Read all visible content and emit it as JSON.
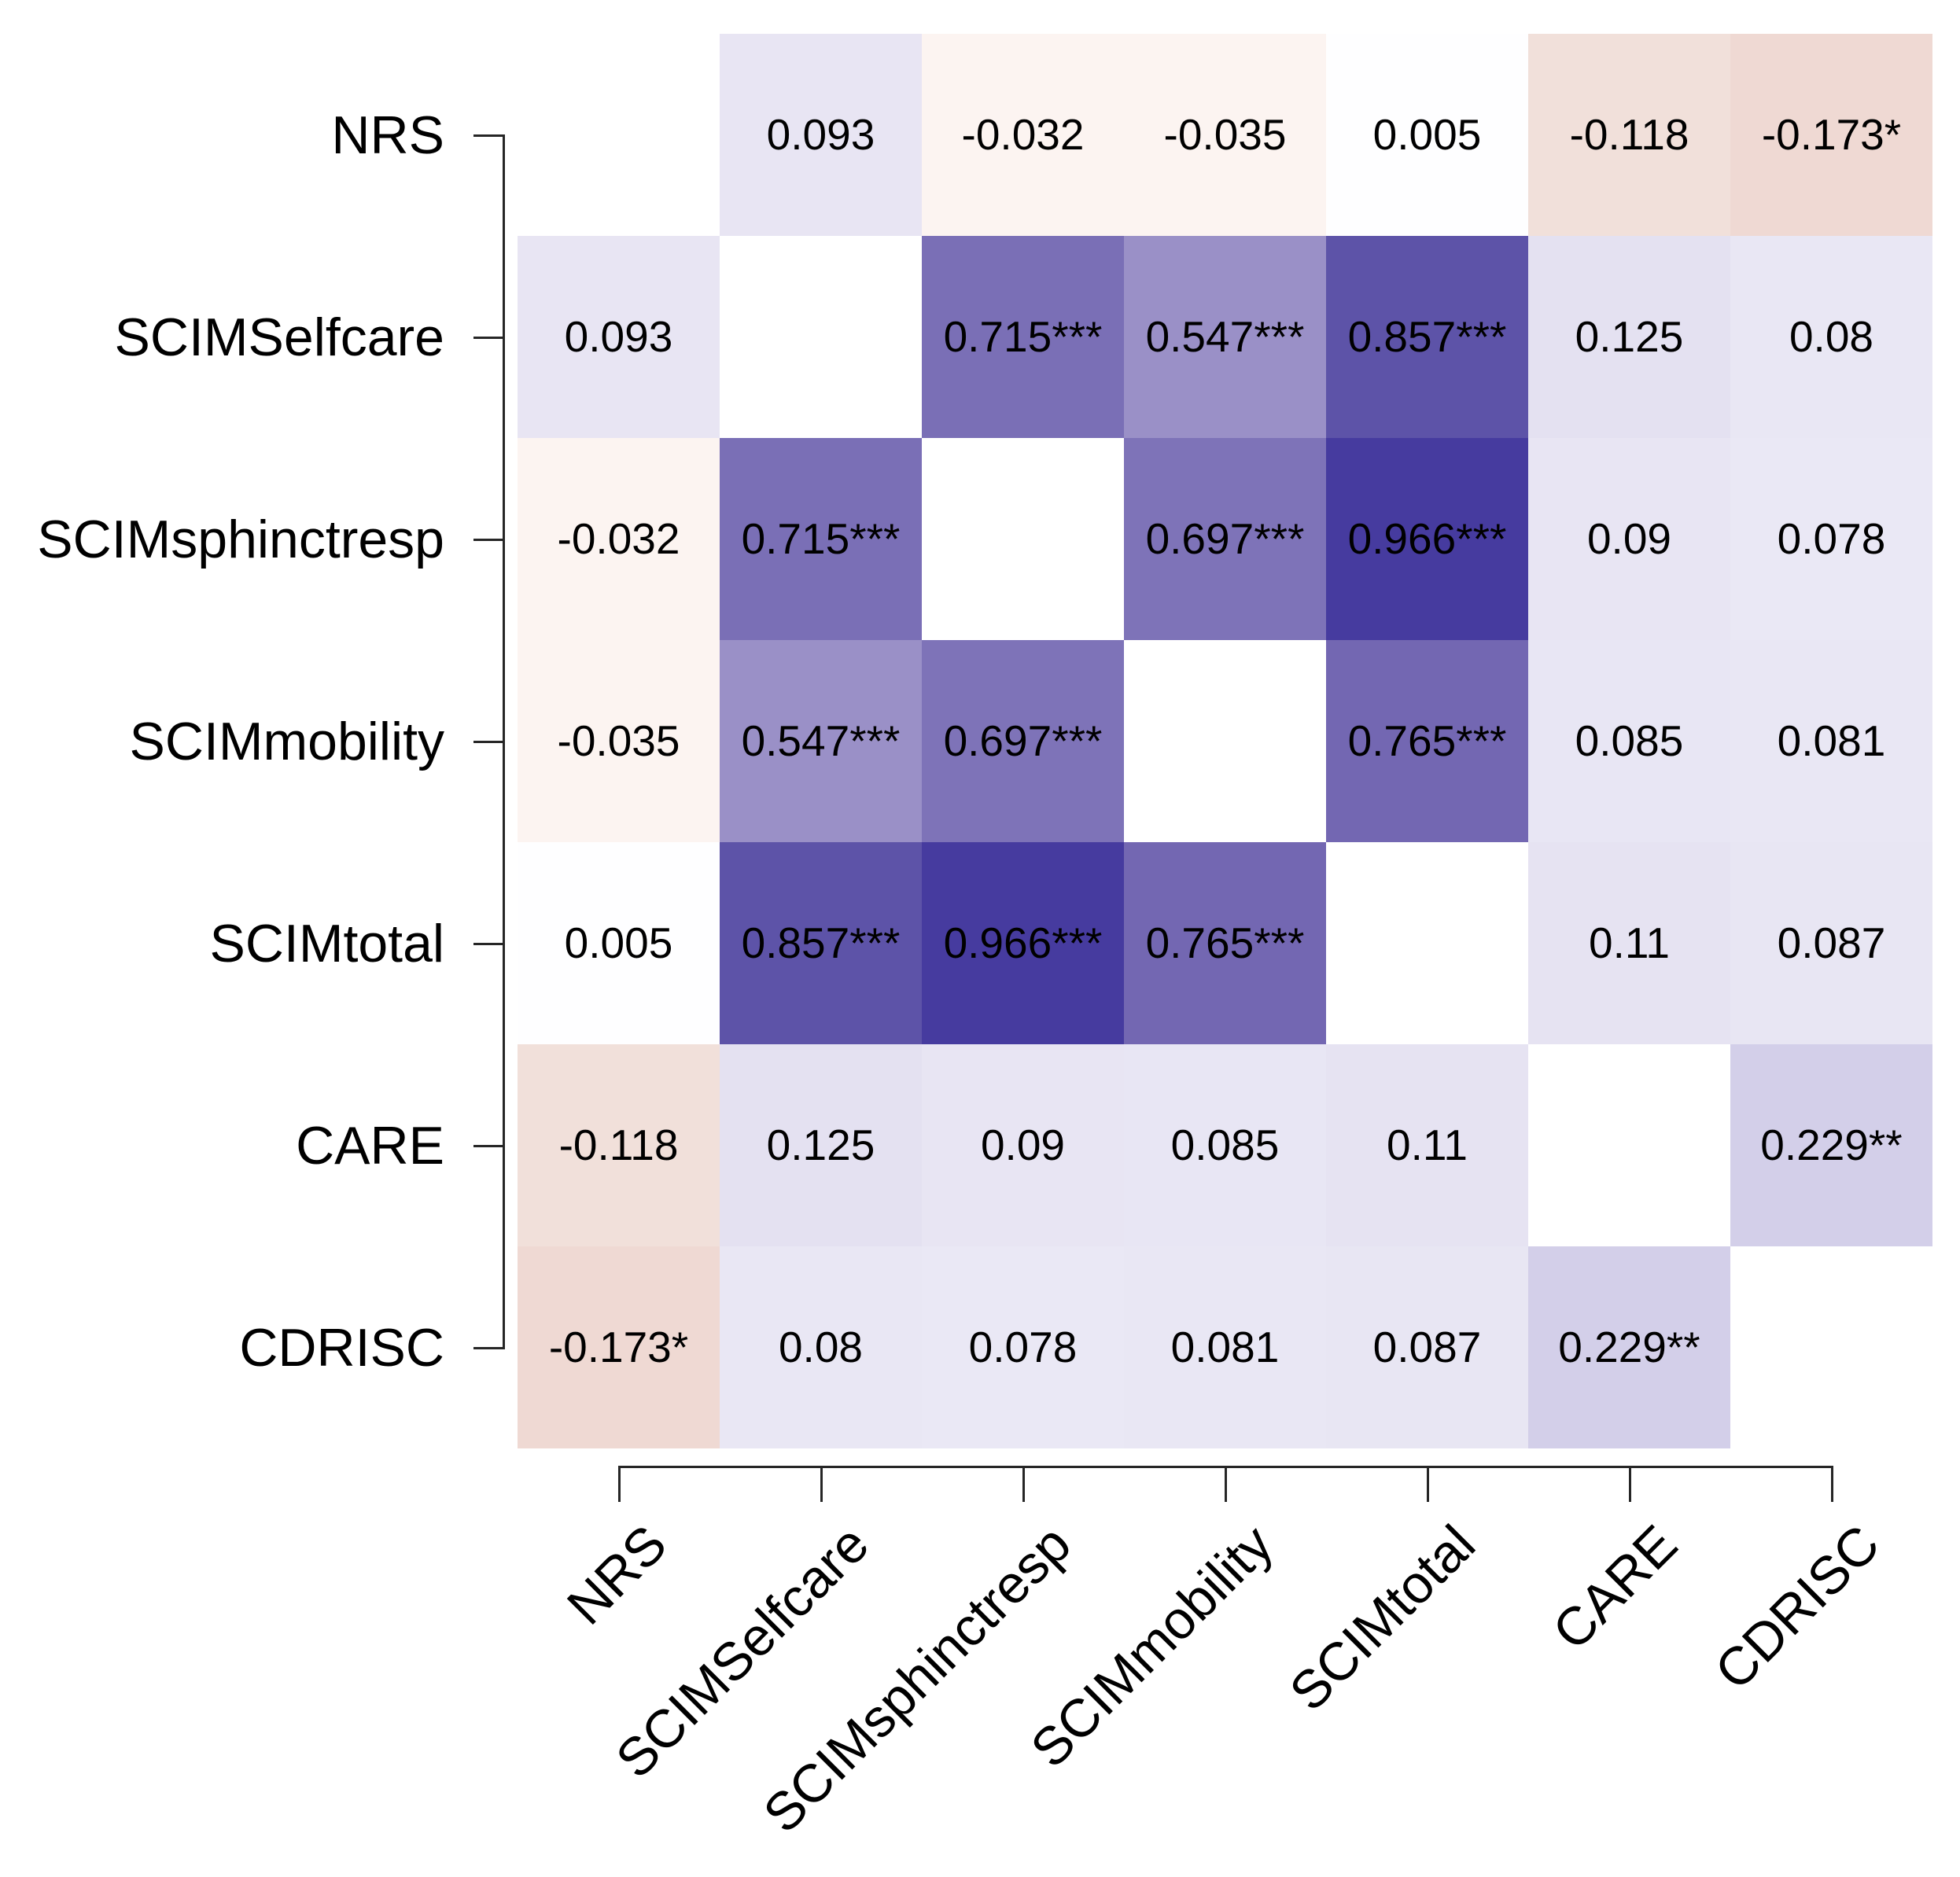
{
  "chart_data": {
    "type": "heatmap",
    "subtype": "correlation-matrix",
    "title": "",
    "variables": [
      "NRS",
      "SCIMSelfcare",
      "SCIMsphinctresp",
      "SCIMmobility",
      "SCIMtotal",
      "CARE",
      "CDRISC"
    ],
    "values": [
      [
        null,
        0.093,
        -0.032,
        -0.035,
        0.005,
        -0.118,
        -0.173
      ],
      [
        0.093,
        null,
        0.715,
        0.547,
        0.857,
        0.125,
        0.08
      ],
      [
        -0.032,
        0.715,
        null,
        0.697,
        0.966,
        0.09,
        0.078
      ],
      [
        -0.035,
        0.547,
        0.697,
        null,
        0.765,
        0.085,
        0.081
      ],
      [
        0.005,
        0.857,
        0.966,
        0.765,
        null,
        0.11,
        0.087
      ],
      [
        -0.118,
        0.125,
        0.09,
        0.085,
        0.11,
        null,
        0.229
      ],
      [
        -0.173,
        0.08,
        0.078,
        0.081,
        0.087,
        0.229,
        null
      ]
    ],
    "labels": [
      [
        "",
        "0.093",
        "-0.032",
        "-0.035",
        "0.005",
        "-0.118",
        "-0.173*"
      ],
      [
        "0.093",
        "",
        "0.715***",
        "0.547***",
        "0.857***",
        "0.125",
        "0.08"
      ],
      [
        "-0.032",
        "0.715***",
        "",
        "0.697***",
        "0.966***",
        "0.09",
        "0.078"
      ],
      [
        "-0.035",
        "0.547***",
        "0.697***",
        "",
        "0.765***",
        "0.085",
        "0.081"
      ],
      [
        "0.005",
        "0.857***",
        "0.966***",
        "0.765***",
        "",
        "0.11",
        "0.087"
      ],
      [
        "-0.118",
        "0.125",
        "0.09",
        "0.085",
        "0.11",
        "",
        "0.229**"
      ],
      [
        "-0.173*",
        "0.08",
        "0.078",
        "0.081",
        "0.087",
        "0.229**",
        ""
      ]
    ],
    "cell_colors": [
      [
        "#ffffff",
        "#e8e5f3",
        "#fcf4f1",
        "#fcf4f1",
        "#fefeff",
        "#f1e0da",
        "#efd9d3"
      ],
      [
        "#e8e5f3",
        "#ffffff",
        "#7a6fb6",
        "#9a90c7",
        "#5d53a8",
        "#e4e1f1",
        "#e9e7f4"
      ],
      [
        "#fcf4f1",
        "#7a6fb6",
        "#ffffff",
        "#7e73b8",
        "#463b9f",
        "#e8e5f3",
        "#eae8f5"
      ],
      [
        "#fcf4f1",
        "#9a90c7",
        "#7e73b8",
        "#ffffff",
        "#7367b2",
        "#e8e6f4",
        "#e9e7f4"
      ],
      [
        "#fefeff",
        "#5d53a8",
        "#463b9f",
        "#7367b2",
        "#ffffff",
        "#e6e3f2",
        "#e8e6f3"
      ],
      [
        "#f1e0da",
        "#e4e1f1",
        "#e8e5f3",
        "#e8e6f4",
        "#e6e3f2",
        "#ffffff",
        "#d3cfe9"
      ],
      [
        "#efd9d3",
        "#e9e7f4",
        "#eae8f5",
        "#e9e7f4",
        "#e8e6f3",
        "#d3cfe9",
        "#ffffff"
      ]
    ],
    "diagonal_color": "#ffffff",
    "positive_color_max": "#463b9f",
    "negative_color_sample": "#efd9d3",
    "text_color": "#000000",
    "axis_color": "#262626",
    "legend": "none",
    "grid": "off",
    "value_range": [
      -1,
      1
    ]
  }
}
